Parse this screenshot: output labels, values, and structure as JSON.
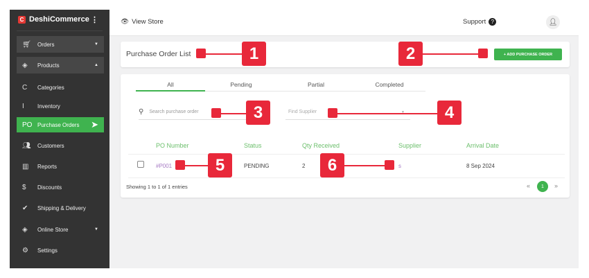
{
  "sidebar": {
    "brand": "DeshiCommerce",
    "logo_letter": "C",
    "items": [
      {
        "label": "Orders",
        "icon": "cart-icon"
      },
      {
        "label": "Products",
        "icon": "layers-icon"
      },
      {
        "label": "Categories",
        "prefix": "C"
      },
      {
        "label": "Inventory",
        "prefix": "I"
      },
      {
        "label": "Purchase Orders",
        "prefix": "PO"
      },
      {
        "label": "Customers",
        "icon": "users-icon"
      },
      {
        "label": "Reports",
        "icon": "chart-icon"
      },
      {
        "label": "Discounts",
        "icon": "discount-icon"
      },
      {
        "label": "Shipping & Delivery",
        "icon": "badge-check-icon"
      },
      {
        "label": "Online Store",
        "icon": "layers-icon"
      },
      {
        "label": "Settings",
        "icon": "gear-icon"
      }
    ]
  },
  "topbar": {
    "view_store": "View Store",
    "support": "Support"
  },
  "header": {
    "title": "Purchase Order List",
    "add_button": "+ ADD PURCHASE ORDER"
  },
  "tabs": [
    "All",
    "Pending",
    "Partial",
    "Completed"
  ],
  "filters": {
    "search_placeholder": "Search purchase order",
    "supplier_placeholder": "Find Supplier"
  },
  "table": {
    "columns": [
      "PO Number",
      "Status",
      "Qty Received",
      "Supplier",
      "Arrival Date"
    ],
    "rows": [
      {
        "po": "#P001",
        "status": "PENDING",
        "qty": "2",
        "supplier": "s",
        "date": "8 Sep 2024"
      }
    ]
  },
  "footer": {
    "showing": "Showing 1 to 1 of 1 entries",
    "page": "1",
    "prev": "«",
    "next": "»"
  },
  "annotations": [
    "1",
    "2",
    "3",
    "4",
    "5",
    "6"
  ],
  "colors": {
    "accent": "#3fb34f",
    "annotation": "#e8283a",
    "sidebar": "#333333"
  }
}
